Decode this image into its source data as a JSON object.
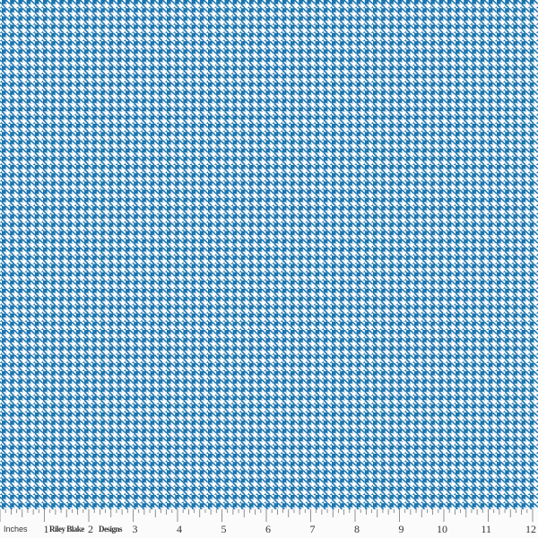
{
  "fabric": {
    "pattern": "houndstooth",
    "colors": {
      "primary": "#1a74ad",
      "secondary": "#ffffff"
    }
  },
  "ruler": {
    "unit_label": "Inches",
    "brand_words": [
      "Riley Blake",
      "Designs"
    ],
    "numbers": [
      "1",
      "2",
      "3",
      "4",
      "5",
      "6",
      "7",
      "8",
      "9",
      "10",
      "11",
      "12"
    ]
  }
}
